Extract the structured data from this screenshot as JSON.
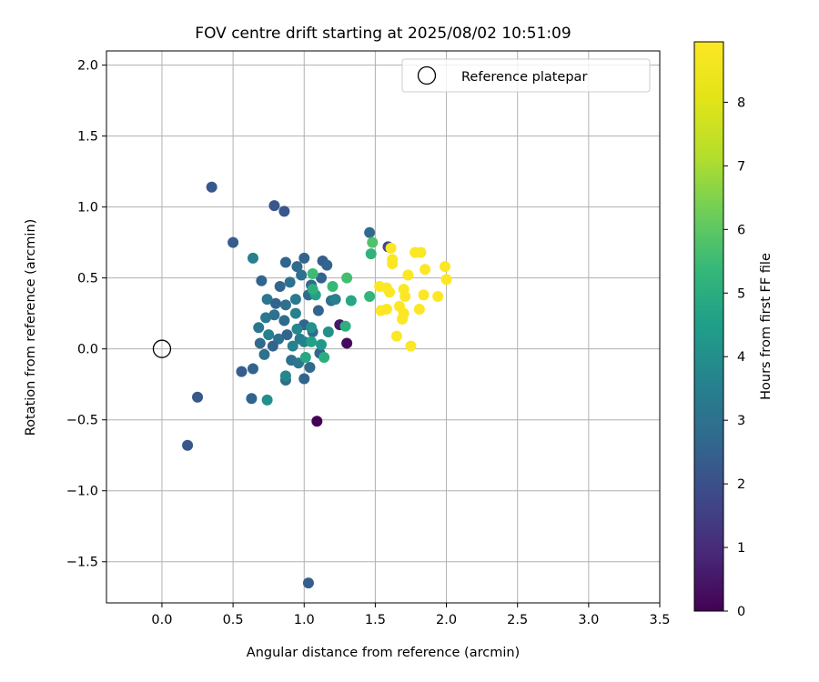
{
  "chart_data": {
    "type": "scatter",
    "title": "FOV centre drift starting at 2025/08/02 10:51:09",
    "xlabel": "Angular distance from reference (arcmin)",
    "ylabel": "Rotation from reference (arcmin)",
    "xlim": [
      -0.39,
      3.5
    ],
    "ylim": [
      -1.79,
      2.1
    ],
    "xticks": [
      "0.0",
      "0.5",
      "1.0",
      "1.5",
      "2.0",
      "2.5",
      "3.0",
      "3.5"
    ],
    "yticks": [
      "−1.5",
      "−1.0",
      "−0.5",
      "0.0",
      "0.5",
      "1.0",
      "1.5",
      "2.0"
    ],
    "xtick_values": [
      0,
      0.5,
      1.0,
      1.5,
      2.0,
      2.5,
      3.0,
      3.5
    ],
    "ytick_values": [
      -1.5,
      -1.0,
      -0.5,
      0,
      0.5,
      1.0,
      1.5,
      2.0
    ],
    "grid": true,
    "legend": {
      "placement": "top-right",
      "entries": [
        "Reference platepar"
      ]
    },
    "reference_point": {
      "x": 0.0,
      "y": 0.0,
      "marker": "open-circle"
    },
    "colorbar": {
      "label": "Hours from first FF file",
      "colormap": "viridis",
      "range": [
        0,
        8.95
      ],
      "ticks": [
        "0",
        "1",
        "2",
        "3",
        "4",
        "5",
        "6",
        "7",
        "8"
      ],
      "tick_values": [
        0,
        1,
        2,
        3,
        4,
        5,
        6,
        7,
        8
      ]
    },
    "points": [
      [
        1.09,
        -0.51,
        0.0
      ],
      [
        1.3,
        0.04,
        0.2
      ],
      [
        1.25,
        0.17,
        0.5
      ],
      [
        0.35,
        1.14,
        2.2
      ],
      [
        0.79,
        1.01,
        2.2
      ],
      [
        0.86,
        0.97,
        2.2
      ],
      [
        0.5,
        0.75,
        2.4
      ],
      [
        1.03,
        -1.65,
        2.4
      ],
      [
        0.18,
        -0.68,
        2.2
      ],
      [
        0.25,
        -0.34,
        2.2
      ],
      [
        0.56,
        -0.16,
        2.4
      ],
      [
        0.64,
        -0.14,
        2.6
      ],
      [
        0.63,
        -0.35,
        2.6
      ],
      [
        1.59,
        0.72,
        1.8
      ],
      [
        1.46,
        0.82,
        2.8
      ],
      [
        0.64,
        0.64,
        3.5
      ],
      [
        0.7,
        0.48,
        2.6
      ],
      [
        0.87,
        0.61,
        2.6
      ],
      [
        0.95,
        0.58,
        2.8
      ],
      [
        1.0,
        0.64,
        2.6
      ],
      [
        1.13,
        0.62,
        2.4
      ],
      [
        1.16,
        0.59,
        2.6
      ],
      [
        1.12,
        0.5,
        2.6
      ],
      [
        0.83,
        0.44,
        2.6
      ],
      [
        0.9,
        0.47,
        3.0
      ],
      [
        0.98,
        0.52,
        3.0
      ],
      [
        1.05,
        0.45,
        2.8
      ],
      [
        0.74,
        0.35,
        3.2
      ],
      [
        0.8,
        0.32,
        2.6
      ],
      [
        0.87,
        0.31,
        3.0
      ],
      [
        0.94,
        0.35,
        3.3
      ],
      [
        1.03,
        0.38,
        2.8
      ],
      [
        1.1,
        0.27,
        2.6
      ],
      [
        1.19,
        0.34,
        3.0
      ],
      [
        0.73,
        0.22,
        3.3
      ],
      [
        0.79,
        0.24,
        3.0
      ],
      [
        0.86,
        0.2,
        2.8
      ],
      [
        0.94,
        0.25,
        3.5
      ],
      [
        1.0,
        0.17,
        2.6
      ],
      [
        1.06,
        0.12,
        2.8
      ],
      [
        0.68,
        0.15,
        3.2
      ],
      [
        0.75,
        0.1,
        3.5
      ],
      [
        0.82,
        0.07,
        3.0
      ],
      [
        0.88,
        0.1,
        2.6
      ],
      [
        0.97,
        0.07,
        3.3
      ],
      [
        0.69,
        0.04,
        2.8
      ],
      [
        0.72,
        -0.04,
        3.0
      ],
      [
        0.78,
        0.02,
        2.6
      ],
      [
        0.91,
        -0.08,
        3.0
      ],
      [
        0.96,
        -0.1,
        3.2
      ],
      [
        1.0,
        -0.21,
        2.6
      ],
      [
        1.04,
        -0.13,
        2.8
      ],
      [
        1.11,
        -0.03,
        2.6
      ],
      [
        0.87,
        -0.22,
        2.8
      ],
      [
        0.87,
        -0.19,
        3.7
      ],
      [
        0.74,
        -0.36,
        4.0
      ],
      [
        0.92,
        0.02,
        3.5
      ],
      [
        0.95,
        0.14,
        3.7
      ],
      [
        1.0,
        0.05,
        3.5
      ],
      [
        1.05,
        0.15,
        4.1
      ],
      [
        1.17,
        0.12,
        4.0
      ],
      [
        1.22,
        0.35,
        3.5
      ],
      [
        1.12,
        0.03,
        4.3
      ],
      [
        1.05,
        0.05,
        4.6
      ],
      [
        1.01,
        -0.06,
        4.8
      ],
      [
        1.14,
        -0.06,
        5.0
      ],
      [
        1.08,
        0.38,
        4.6
      ],
      [
        1.06,
        0.42,
        5.1
      ],
      [
        1.06,
        0.53,
        5.5
      ],
      [
        1.2,
        0.44,
        5.4
      ],
      [
        1.3,
        0.5,
        5.6
      ],
      [
        1.33,
        0.34,
        4.8
      ],
      [
        1.29,
        0.16,
        5.1
      ],
      [
        1.47,
        0.67,
        5.2
      ],
      [
        1.48,
        0.75,
        5.8
      ],
      [
        1.46,
        0.37,
        5.3
      ],
      [
        1.61,
        0.71,
        8.9
      ],
      [
        1.62,
        0.63,
        8.9
      ],
      [
        1.62,
        0.6,
        8.9
      ],
      [
        1.78,
        0.68,
        8.9
      ],
      [
        1.82,
        0.68,
        8.9
      ],
      [
        1.99,
        0.58,
        8.9
      ],
      [
        2.0,
        0.49,
        8.9
      ],
      [
        1.85,
        0.56,
        8.9
      ],
      [
        1.73,
        0.52,
        8.9
      ],
      [
        1.58,
        0.43,
        8.9
      ],
      [
        1.6,
        0.4,
        8.9
      ],
      [
        1.53,
        0.44,
        8.9
      ],
      [
        1.7,
        0.42,
        8.9
      ],
      [
        1.71,
        0.37,
        8.9
      ],
      [
        1.67,
        0.3,
        8.9
      ],
      [
        1.54,
        0.27,
        8.9
      ],
      [
        1.58,
        0.28,
        8.9
      ],
      [
        1.7,
        0.25,
        8.9
      ],
      [
        1.69,
        0.21,
        8.9
      ],
      [
        1.84,
        0.38,
        8.9
      ],
      [
        1.94,
        0.37,
        8.9
      ],
      [
        1.81,
        0.28,
        8.9
      ],
      [
        1.65,
        0.09,
        8.9
      ],
      [
        1.75,
        0.02,
        8.9
      ]
    ]
  }
}
